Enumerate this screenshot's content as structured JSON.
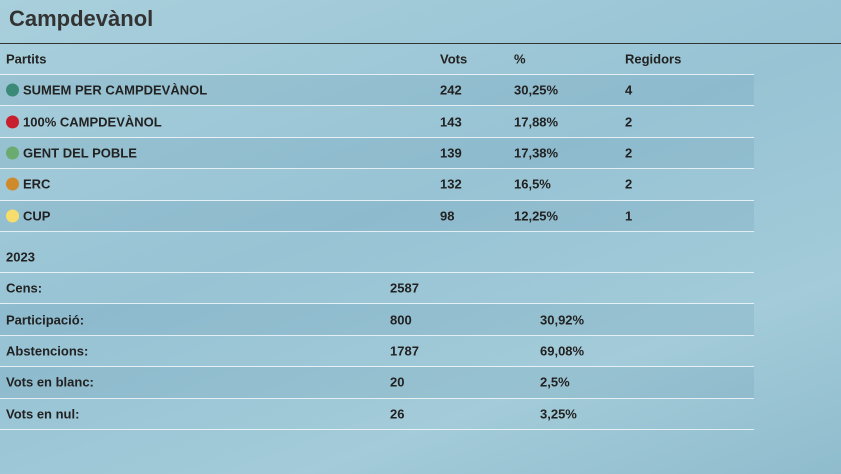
{
  "header": {
    "title": "Campdevànol"
  },
  "results": {
    "columns": [
      "Partits",
      "Vots",
      "%",
      "Regidors"
    ],
    "rows": [
      {
        "name": "SUMEM PER CAMPDEVÀNOL",
        "color": "#3b8a78",
        "vots": "242",
        "pct": "30,25%",
        "regidors": "4"
      },
      {
        "name": "100% CAMPDEVÀNOL",
        "color": "#c81f2f",
        "vots": "143",
        "pct": "17,88%",
        "regidors": "2"
      },
      {
        "name": "GENT DEL POBLE",
        "color": "#6cab70",
        "vots": "139",
        "pct": "17,38%",
        "regidors": "2"
      },
      {
        "name": "ERC",
        "color": "#cf8a2b",
        "vots": "132",
        "pct": "16,5%",
        "regidors": "2"
      },
      {
        "name": "CUP",
        "color": "#f6dd6c",
        "vots": "98",
        "pct": "12,25%",
        "regidors": "1"
      }
    ]
  },
  "summary": {
    "year": "2023",
    "rows": [
      {
        "label": "Cens:",
        "value": "2587"
      },
      {
        "label": "Participació:",
        "value": "800",
        "pct": "30,92%"
      },
      {
        "label": "Abstencions:",
        "value": "1787",
        "pct": "69,08%"
      },
      {
        "label": "Vots en blanc:",
        "value": "20",
        "pct": "2,5%"
      },
      {
        "label": "Vots en nul:",
        "value": "26",
        "pct": "3,25%"
      }
    ]
  }
}
